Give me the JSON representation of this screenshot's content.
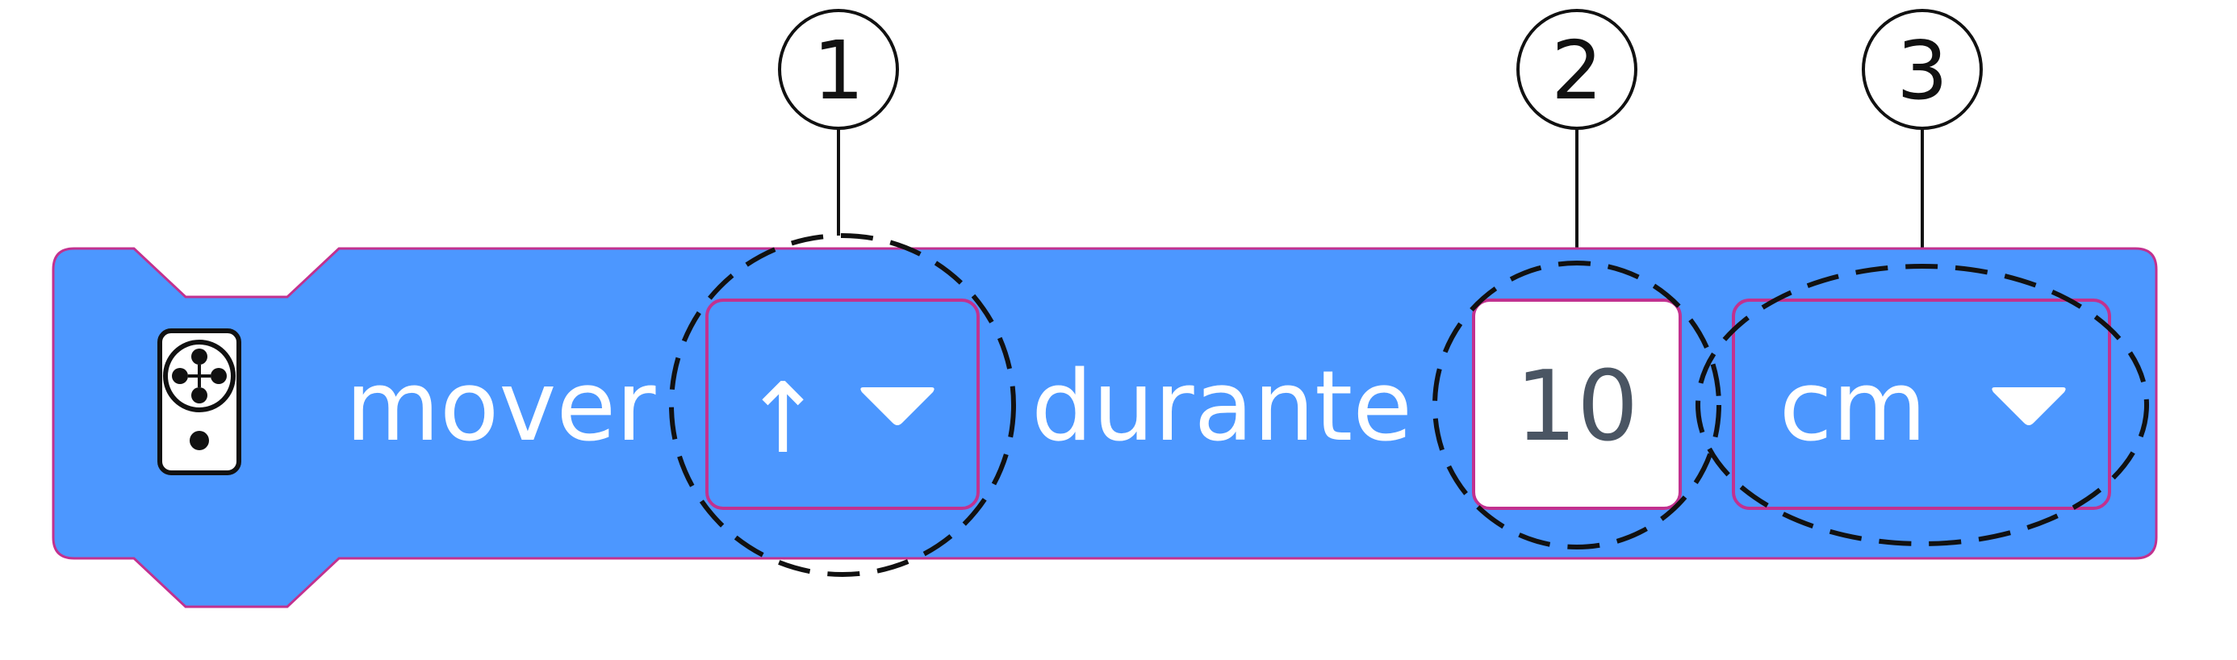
{
  "block": {
    "icon": "drivetrain-icon",
    "label_move": "mover",
    "direction_value": "↑",
    "label_for": "durante",
    "distance_value": "10",
    "unit_value": "cm",
    "color_block": "#4c97ff",
    "color_border": "#c2318f"
  },
  "callouts": [
    {
      "number": "1"
    },
    {
      "number": "2"
    },
    {
      "number": "3"
    }
  ]
}
